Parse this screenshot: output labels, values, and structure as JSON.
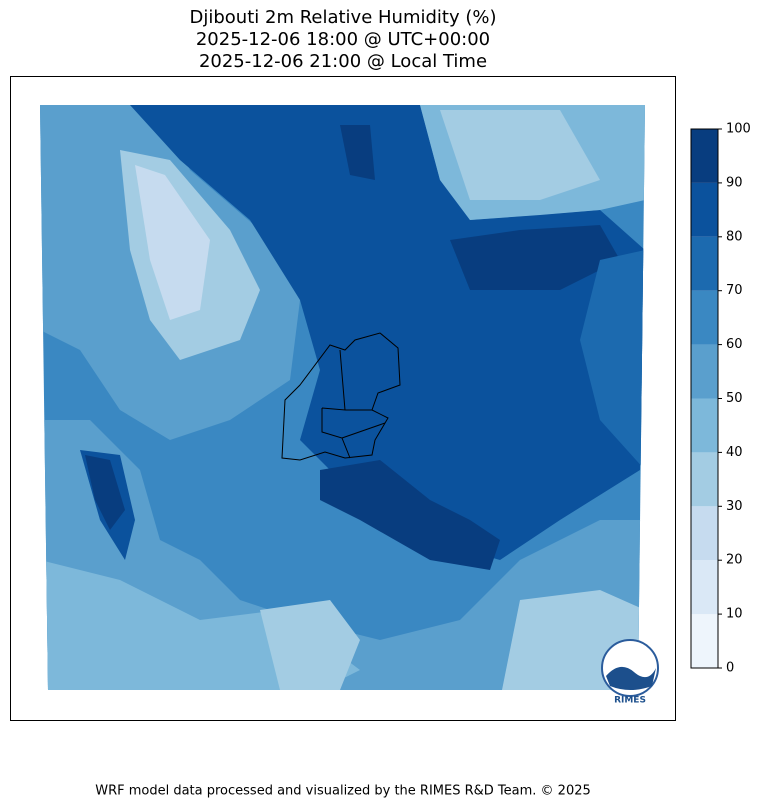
{
  "title": [
    "Djibouti 2m Relative Humidity (%)",
    "2025-12-06 18:00 @ UTC+00:00",
    "2025-12-06 21:00 @ Local Time"
  ],
  "colorbar": {
    "ticks": [
      0,
      10,
      20,
      30,
      40,
      50,
      60,
      70,
      80,
      90,
      100
    ],
    "colors": [
      "#eef5fc",
      "#dae8f6",
      "#c6dbef",
      "#a3cce3",
      "#7db8da",
      "#5a9fcd",
      "#3a88c2",
      "#1c6aaf",
      "#0b529d",
      "#083d7f"
    ]
  },
  "logo": {
    "label": "RIMES"
  },
  "footer": "WRF model data processed and visualized by the RIMES R&D Team. © 2025"
}
